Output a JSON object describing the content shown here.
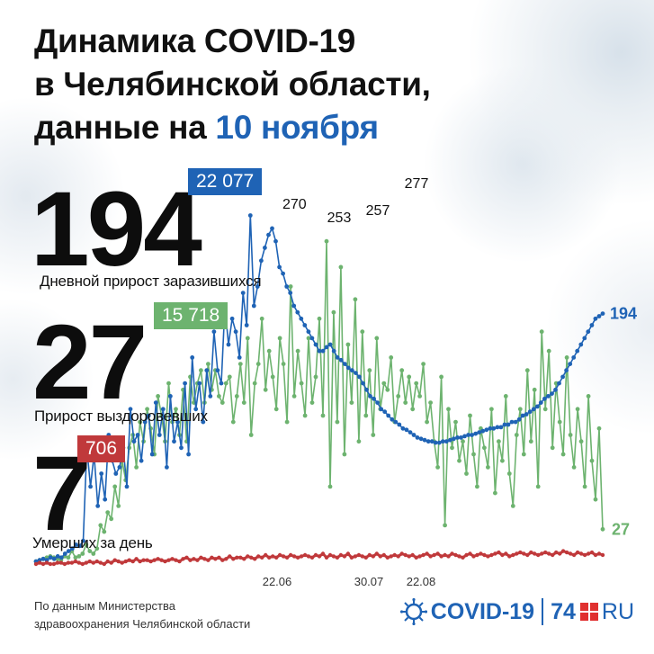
{
  "title": {
    "line1": "Динамика COVID-19",
    "line2": "в Челябинской области,",
    "line3_prefix": "данные на ",
    "line3_date": "10 ноября"
  },
  "stats": {
    "infected": {
      "value": "194",
      "caption": "Дневной прирост заразившихся",
      "total": "22 077"
    },
    "recovered": {
      "value": "27",
      "caption": "Прирост выздоровевших",
      "total": "15 718"
    },
    "deaths": {
      "value": "7",
      "caption": "Умерших за день",
      "total": "706"
    }
  },
  "source": {
    "line1": "По данным Министерства",
    "line2": "здравоохранения Челябинской области"
  },
  "brand": {
    "covid": "COVID-19",
    "n74": "74",
    "ru": "RU",
    "virus_icon": "virus-icon"
  },
  "colors": {
    "title_accent": "#1f63b5",
    "infected": "#1f63b5",
    "recovered": "#6db36f",
    "deaths": "#c0393b"
  },
  "chart_data": {
    "type": "line",
    "x_ticks": [
      "22.06",
      "30.07",
      "22.08"
    ],
    "annotations": [
      "270",
      "253",
      "257",
      "277",
      "194",
      "27"
    ],
    "series": [
      {
        "name": "Дневной прирост заразившихся",
        "color": "#1f63b5",
        "values": [
          2,
          3,
          4,
          3,
          5,
          4,
          6,
          5,
          8,
          10,
          12,
          15,
          14,
          18,
          90,
          60,
          85,
          45,
          70,
          50,
          100,
          80,
          70,
          75,
          90,
          60,
          120,
          95,
          100,
          80,
          110,
          115,
          85,
          125,
          100,
          120,
          75,
          130,
          95,
          110,
          90,
          140,
          85,
          160,
          120,
          140,
          110,
          150,
          130,
          180,
          150,
          140,
          200,
          170,
          190,
          180,
          160,
          210,
          185,
          270,
          200,
          215,
          235,
          245,
          255,
          260,
          250,
          230,
          225,
          215,
          210,
          200,
          195,
          190,
          185,
          180,
          175,
          170,
          165,
          165,
          168,
          170,
          165,
          160,
          158,
          155,
          152,
          150,
          148,
          145,
          140,
          135,
          130,
          128,
          125,
          120,
          118,
          115,
          112,
          110,
          108,
          105,
          104,
          102,
          100,
          98,
          97,
          96,
          95,
          95,
          94,
          94,
          95,
          95,
          96,
          97,
          98,
          98,
          99,
          100,
          100,
          101,
          102,
          103,
          104,
          105,
          105,
          106,
          106,
          108,
          108,
          110,
          110,
          112,
          115,
          116,
          118,
          120,
          122,
          125,
          128,
          130,
          132,
          135,
          140,
          145,
          150,
          155,
          160,
          165,
          170,
          175,
          180,
          185,
          190,
          192,
          194
        ]
      },
      {
        "name": "Прирост выздоровевших",
        "color": "#6db36f",
        "values": [
          2,
          3,
          4,
          5,
          6,
          5,
          4,
          3,
          6,
          5,
          10,
          5,
          6,
          8,
          15,
          10,
          8,
          12,
          30,
          25,
          40,
          35,
          60,
          45,
          80,
          65,
          90,
          100,
          75,
          110,
          95,
          120,
          105,
          85,
          130,
          115,
          95,
          140,
          110,
          120,
          100,
          135,
          95,
          145,
          125,
          140,
          150,
          125,
          155,
          135,
          150,
          130,
          125,
          140,
          145,
          110,
          130,
          155,
          125,
          175,
          100,
          140,
          155,
          190,
          135,
          165,
          145,
          120,
          175,
          155,
          110,
          215,
          130,
          165,
          140,
          115,
          175,
          125,
          145,
          190,
          115,
          250,
          60,
          195,
          110,
          230,
          85,
          170,
          125,
          205,
          95,
          180,
          115,
          150,
          100,
          175,
          120,
          140,
          135,
          160,
          110,
          130,
          150,
          125,
          145,
          120,
          140,
          130,
          155,
          110,
          125,
          95,
          75,
          145,
          30,
          120,
          90,
          110,
          80,
          95,
          70,
          115,
          85,
          60,
          105,
          90,
          75,
          120,
          55,
          95,
          80,
          130,
          70,
          45,
          100,
          120,
          85,
          150,
          95,
          135,
          60,
          180,
          120,
          165,
          90,
          140,
          110,
          85,
          160,
          100,
          75,
          120,
          95,
          60,
          130,
          80,
          50,
          105,
          27
        ]
      },
      {
        "name": "Умерших за день",
        "color": "#c0393b",
        "values": [
          0,
          1,
          0,
          1,
          0,
          0,
          1,
          1,
          0,
          1,
          1,
          2,
          1,
          0,
          1,
          2,
          1,
          2,
          1,
          0,
          2,
          1,
          3,
          2,
          1,
          2,
          3,
          2,
          4,
          2,
          3,
          3,
          2,
          3,
          4,
          3,
          2,
          3,
          4,
          3,
          2,
          4,
          5,
          3,
          4,
          3,
          5,
          4,
          3,
          5,
          4,
          5,
          3,
          4,
          6,
          4,
          5,
          5,
          4,
          6,
          5,
          4,
          6,
          5,
          7,
          5,
          6,
          5,
          7,
          6,
          5,
          7,
          6,
          5,
          6,
          7,
          6,
          5,
          7,
          6,
          8,
          5,
          7,
          6,
          5,
          7,
          6,
          8,
          5,
          6,
          7,
          6,
          5,
          7,
          6,
          8,
          6,
          7,
          5,
          6,
          7,
          6,
          8,
          7,
          6,
          7,
          5,
          6,
          7,
          8,
          6,
          7,
          8,
          6,
          7,
          6,
          8,
          7,
          6,
          5,
          7,
          8,
          6,
          7,
          8,
          7,
          6,
          7,
          8,
          9,
          7,
          8,
          6,
          7,
          8,
          9,
          8,
          7,
          9,
          8,
          7,
          8,
          9,
          8,
          7,
          9,
          8,
          10,
          9,
          8,
          7,
          9,
          8,
          7,
          8,
          9,
          7,
          8,
          7
        ]
      }
    ],
    "ylim": [
      0,
      285
    ]
  }
}
